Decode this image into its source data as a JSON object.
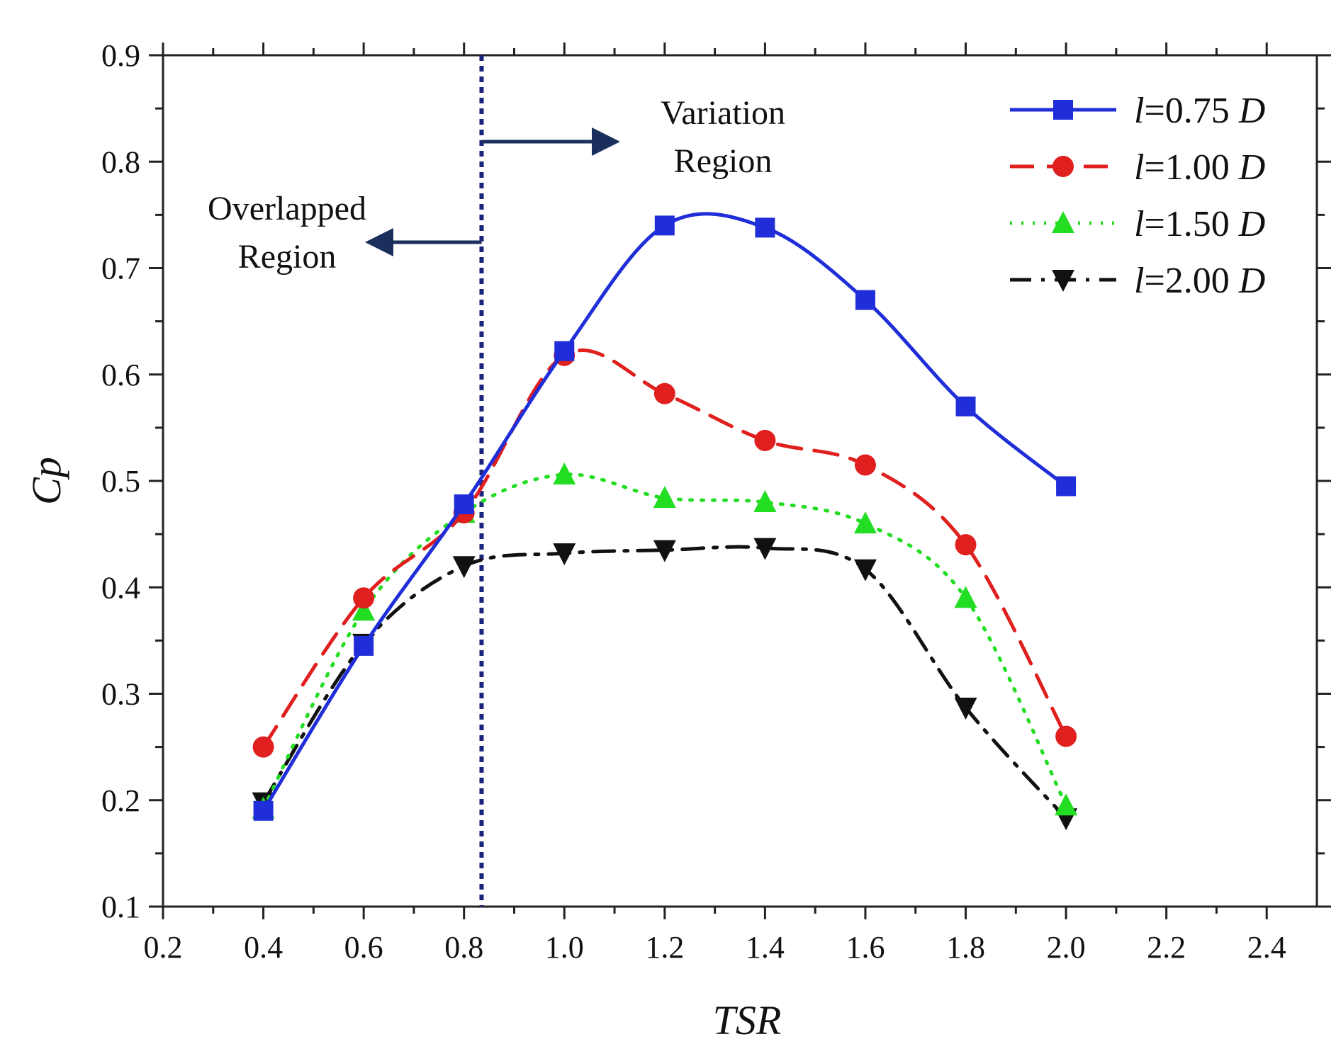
{
  "chart_data": {
    "type": "line",
    "title": "",
    "xlabel": "TSR",
    "ylabel": "Cp",
    "xlim": [
      0.2,
      2.5
    ],
    "ylim": [
      0.1,
      0.9
    ],
    "xticks": [
      "0.2",
      "0.4",
      "0.6",
      "0.8",
      "1.0",
      "1.2",
      "1.4",
      "1.6",
      "1.8",
      "2.0",
      "2.2",
      "2.4"
    ],
    "yticks": [
      "0.1",
      "0.2",
      "0.3",
      "0.4",
      "0.5",
      "0.6",
      "0.7",
      "0.8",
      "0.9"
    ],
    "grid": false,
    "legend_position": "top-right",
    "x": [
      0.4,
      0.6,
      0.8,
      1.0,
      1.2,
      1.4,
      1.6,
      1.8,
      2.0
    ],
    "series": [
      {
        "name": "l=0.75 D",
        "prefix": "l",
        "suffix": "=0.75 ",
        "unit": "D",
        "color": "#1f2ed8",
        "dash": "solid",
        "marker": "square",
        "values": [
          0.19,
          0.345,
          0.478,
          0.622,
          0.74,
          0.738,
          0.67,
          0.57,
          0.495
        ]
      },
      {
        "name": "l=1.00 D",
        "prefix": "l",
        "suffix": "=1.00 ",
        "unit": "D",
        "color": "#e01f1f",
        "dash": "dashed",
        "marker": "circle",
        "values": [
          0.25,
          0.39,
          0.47,
          0.618,
          0.582,
          0.538,
          0.515,
          0.44,
          0.26
        ]
      },
      {
        "name": "l=1.50 D",
        "prefix": "l",
        "suffix": "=1.50 ",
        "unit": "D",
        "color": "#22dd22",
        "dash": "dotted",
        "marker": "triangle-up",
        "values": [
          0.192,
          0.378,
          0.47,
          0.506,
          0.484,
          0.48,
          0.46,
          0.39,
          0.195
        ]
      },
      {
        "name": "l=2.00 D",
        "prefix": "l",
        "suffix": "=2.00 ",
        "unit": "D",
        "color": "#111111",
        "dash": "dashdot",
        "marker": "triangle-down",
        "values": [
          0.198,
          0.347,
          0.42,
          0.432,
          0.435,
          0.437,
          0.417,
          0.287,
          0.183
        ]
      }
    ],
    "reference_line": {
      "x": 0.835,
      "color": "#1a237e",
      "style": "dotted"
    },
    "annotations": {
      "right_region_line1": "Variation",
      "right_region_line2": "Region",
      "left_region_line1": "Overlapped",
      "left_region_line2": "Region",
      "arrow_color": "#1a2f5c"
    }
  }
}
